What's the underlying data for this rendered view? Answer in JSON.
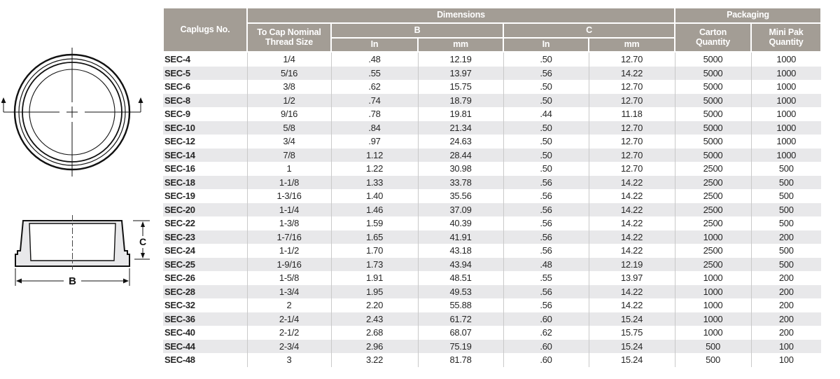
{
  "table": {
    "header": {
      "caplugs_no": "Caplugs No.",
      "dimensions": "Dimensions",
      "packaging": "Packaging",
      "thread_size_line1": "To Cap Nominal",
      "thread_size_line2": "Thread Size",
      "b": "B",
      "c": "C",
      "in_b": "In",
      "mm_b": "mm",
      "in_c": "In",
      "mm_c": "mm",
      "carton_line1": "Carton",
      "carton_line2": "Quantity",
      "minipak_line1": "Mini Pak",
      "minipak_line2": "Quantity"
    },
    "columns": [
      "Caplugs No.",
      "To Cap Nominal Thread Size",
      "B In",
      "B mm",
      "C In",
      "C mm",
      "Carton Quantity",
      "Mini Pak Quantity"
    ],
    "rows": [
      [
        "SEC-4",
        "1/4",
        ".48",
        "12.19",
        ".50",
        "12.70",
        "5000",
        "1000"
      ],
      [
        "SEC-5",
        "5/16",
        ".55",
        "13.97",
        ".56",
        "14.22",
        "5000",
        "1000"
      ],
      [
        "SEC-6",
        "3/8",
        ".62",
        "15.75",
        ".50",
        "12.70",
        "5000",
        "1000"
      ],
      [
        "SEC-8",
        "1/2",
        ".74",
        "18.79",
        ".50",
        "12.70",
        "5000",
        "1000"
      ],
      [
        "SEC-9",
        "9/16",
        ".78",
        "19.81",
        ".44",
        "11.18",
        "5000",
        "1000"
      ],
      [
        "SEC-10",
        "5/8",
        ".84",
        "21.34",
        ".50",
        "12.70",
        "5000",
        "1000"
      ],
      [
        "SEC-12",
        "3/4",
        ".97",
        "24.63",
        ".50",
        "12.70",
        "5000",
        "1000"
      ],
      [
        "SEC-14",
        "7/8",
        "1.12",
        "28.44",
        ".50",
        "12.70",
        "5000",
        "1000"
      ],
      [
        "SEC-16",
        "1",
        "1.22",
        "30.98",
        ".50",
        "12.70",
        "2500",
        "500"
      ],
      [
        "SEC-18",
        "1-1/8",
        "1.33",
        "33.78",
        ".56",
        "14.22",
        "2500",
        "500"
      ],
      [
        "SEC-19",
        "1-3/16",
        "1.40",
        "35.56",
        ".56",
        "14.22",
        "2500",
        "500"
      ],
      [
        "SEC-20",
        "1-1/4",
        "1.46",
        "37.09",
        ".56",
        "14.22",
        "2500",
        "500"
      ],
      [
        "SEC-22",
        "1-3/8",
        "1.59",
        "40.39",
        ".56",
        "14.22",
        "2500",
        "500"
      ],
      [
        "SEC-23",
        "1-7/16",
        "1.65",
        "41.91",
        ".56",
        "14.22",
        "1000",
        "200"
      ],
      [
        "SEC-24",
        "1-1/2",
        "1.70",
        "43.18",
        ".56",
        "14.22",
        "2500",
        "500"
      ],
      [
        "SEC-25",
        "1-9/16",
        "1.73",
        "43.94",
        ".48",
        "12.19",
        "2500",
        "500"
      ],
      [
        "SEC-26",
        "1-5/8",
        "1.91",
        "48.51",
        ".55",
        "13.97",
        "1000",
        "200"
      ],
      [
        "SEC-28",
        "1-3/4",
        "1.95",
        "49.53",
        ".56",
        "14.22",
        "1000",
        "200"
      ],
      [
        "SEC-32",
        "2",
        "2.20",
        "55.88",
        ".56",
        "14.22",
        "1000",
        "200"
      ],
      [
        "SEC-36",
        "2-1/4",
        "2.43",
        "61.72",
        ".60",
        "15.24",
        "1000",
        "200"
      ],
      [
        "SEC-40",
        "2-1/2",
        "2.68",
        "68.07",
        ".62",
        "15.75",
        "1000",
        "200"
      ],
      [
        "SEC-44",
        "2-3/4",
        "2.96",
        "75.19",
        ".60",
        "15.24",
        "500",
        "100"
      ],
      [
        "SEC-48",
        "3",
        "3.22",
        "81.78",
        ".60",
        "15.24",
        "500",
        "100"
      ]
    ]
  },
  "diagram": {
    "dim_b_label": "B",
    "dim_c_label": "C"
  },
  "colors": {
    "header_bg": "#a39d95",
    "header_text": "#ffffff",
    "row_stripe": "#e8e8ea",
    "data_text": "#262626",
    "grid_line": "#c9c9c9",
    "drawing_line": "#111111",
    "cap_fill": "#e8e8ea"
  }
}
